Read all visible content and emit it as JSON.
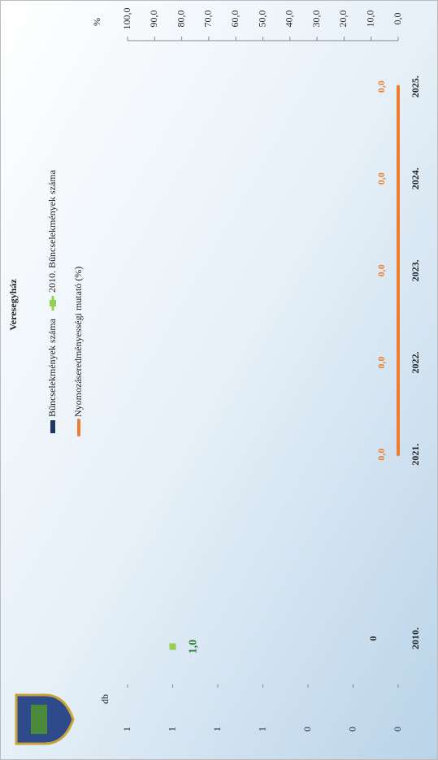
{
  "chart_data": {
    "type": "bar",
    "title": "Veresegyház",
    "ylabel": "db",
    "y2label": "%",
    "categories": [
      "2010.",
      null,
      "2021.",
      "2022.",
      "2023.",
      "2024.",
      "2025."
    ],
    "ylim": [
      0,
      1.2
    ],
    "yticks": [
      0,
      {
        "value": 0.2,
        "label": "0"
      },
      {
        "value": 0.4,
        "label": "0"
      },
      {
        "value": 0.6,
        "label": "1"
      },
      {
        "value": 0.8,
        "label": "1"
      },
      1,
      {
        "value": 1.2,
        "label": "1"
      }
    ],
    "y2lim": [
      0,
      100
    ],
    "y2ticks": [
      {
        "value": 0,
        "label": "0,0"
      },
      {
        "value": 10,
        "label": "10,0"
      },
      {
        "value": 20,
        "label": "20,0"
      },
      {
        "value": 30,
        "label": "30,0"
      },
      {
        "value": 40,
        "label": "40,0"
      },
      {
        "value": 50,
        "label": "50,0"
      },
      {
        "value": 60,
        "label": "60,0"
      },
      {
        "value": 70,
        "label": "70,0"
      },
      {
        "value": 80,
        "label": "80,0"
      },
      {
        "value": 90,
        "label": "90,0"
      },
      {
        "value": 100,
        "label": "100,0"
      }
    ],
    "series": [
      {
        "name": "Bűncselekmények száma",
        "type": "bar",
        "color": "#1f3864",
        "values": [
          0,
          null,
          null,
          null,
          null,
          null,
          null
        ]
      },
      {
        "name": "Nyomozáseredményességi mutató (%)",
        "type": "line",
        "axis": "y2",
        "color": "#ed7d31",
        "values": [
          null,
          null,
          0,
          0,
          0,
          0,
          0
        ],
        "value_labels": [
          null,
          null,
          "0,0",
          "0,0",
          "0,0",
          "0,0",
          "0,0"
        ]
      },
      {
        "name": "2010. Bűncselekmények száma",
        "type": "scatter",
        "color": "#92d050",
        "values": [
          1,
          null,
          null,
          null,
          null,
          null,
          null
        ],
        "value_labels": [
          "1,0",
          null,
          null,
          null,
          null,
          null,
          null
        ]
      }
    ]
  }
}
